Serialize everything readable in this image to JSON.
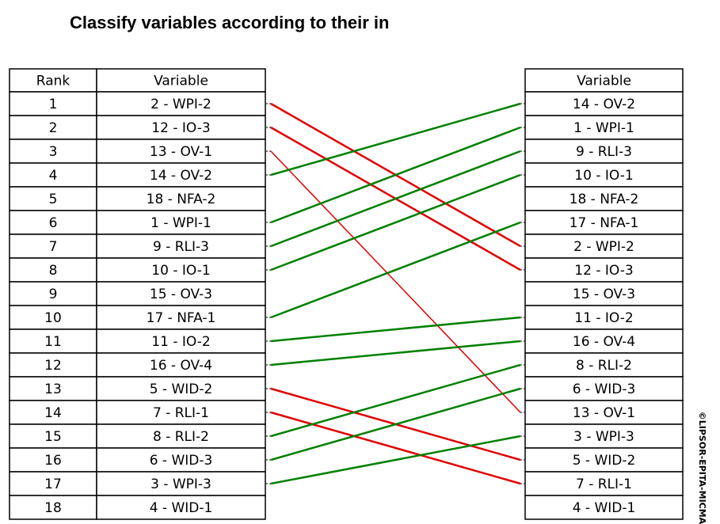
{
  "header": {
    "title": "Classify variables according to their in"
  },
  "left_table": {
    "columns": [
      "Rank",
      "Variable"
    ],
    "rows": [
      [
        1,
        "2 - WPI-2"
      ],
      [
        2,
        "12 - IO-3"
      ],
      [
        3,
        "13 - OV-1"
      ],
      [
        4,
        "14 - OV-2"
      ],
      [
        5,
        "18 - NFA-2"
      ],
      [
        6,
        "1 - WPI-1"
      ],
      [
        7,
        "9 - RLI-3"
      ],
      [
        8,
        "10 - IO-1"
      ],
      [
        9,
        "15 - OV-3"
      ],
      [
        10,
        "17 - NFA-1"
      ],
      [
        11,
        "11 - IO-2"
      ],
      [
        12,
        "16 - OV-4"
      ],
      [
        13,
        "5 - WID-2"
      ],
      [
        14,
        "7 - RLI-1"
      ],
      [
        15,
        "8 - RLI-2"
      ],
      [
        16,
        "6 - WID-3"
      ],
      [
        17,
        "3 - WPI-3"
      ],
      [
        18,
        "4 - WID-1"
      ]
    ]
  },
  "right_table": {
    "columns": [
      "Variable"
    ],
    "rows": [
      "14 - OV-2",
      "1 - WPI-1",
      "9 - RLI-3",
      "10 - IO-1",
      "18 - NFA-2",
      "17 - NFA-1",
      "2 - WPI-2",
      "12 - IO-3",
      "15 - OV-3",
      "11 - IO-2",
      "16 - OV-4",
      "8 - RLI-2",
      "6 - WID-3",
      "13 - OV-1",
      "3 - WPI-3",
      "5 - WID-2",
      "7 - RLI-1",
      "4 - WID-1"
    ]
  },
  "watermark": "©LIPSOR-EPITA-MICMAC"
}
